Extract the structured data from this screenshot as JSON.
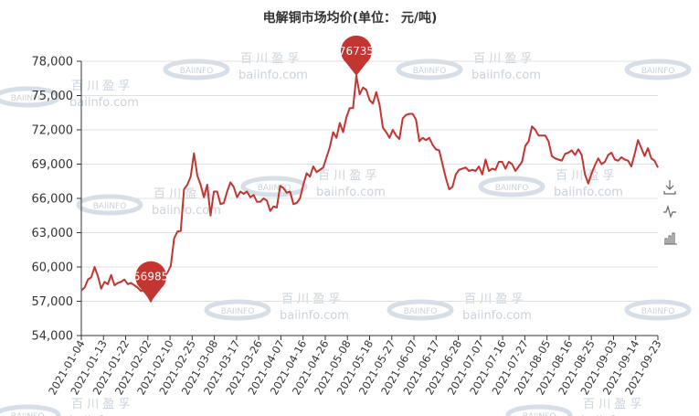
{
  "chart_data": {
    "type": "line",
    "title": "电解铜市场均价(单位： 元/吨)",
    "xlabel": "",
    "ylabel": "",
    "ylim": [
      54000,
      80000
    ],
    "y_ticks": [
      54000,
      57000,
      60000,
      63000,
      66000,
      69000,
      72000,
      75000,
      78000
    ],
    "y_tick_labels": [
      "54,000",
      "57,000",
      "60,000",
      "63,000",
      "66,000",
      "69,000",
      "72,000",
      "75,000",
      "78,000"
    ],
    "x_tick_labels": [
      "2021-01-04",
      "2021-01-13",
      "2021-01-22",
      "2021-02-02",
      "2021-02-10",
      "2021-02-25",
      "2021-03-08",
      "2021-03-17",
      "2021-03-26",
      "2021-04-07",
      "2021-04-16",
      "2021-04-26",
      "2021-05-08",
      "2021-05-18",
      "2021-05-27",
      "2021-06-07",
      "2021-06-17",
      "2021-06-28",
      "2021-07-07",
      "2021-07-16",
      "2021-07-27",
      "2021-08-05",
      "2021-08-16",
      "2021-08-25",
      "2021-09-03",
      "2021-09-14",
      "2021-09-23"
    ],
    "grid": true,
    "line_color": "#c23531",
    "series": [
      {
        "values": [
          57950,
          58200,
          58900,
          59100,
          60000,
          59200,
          58100,
          58700,
          58500,
          59300,
          58400,
          58600,
          58700,
          58900,
          58500,
          58600,
          58400,
          58200,
          57900,
          58000,
          57500,
          56985,
          57800,
          58200,
          58800,
          59200,
          59500,
          60100,
          62500,
          63100,
          63150,
          66800,
          67200,
          67900,
          69950,
          68000,
          67200,
          66100,
          67200,
          64500,
          66600,
          66600,
          65500,
          65600,
          66600,
          67400,
          67000,
          66100,
          66600,
          66400,
          66600,
          66100,
          66300,
          65700,
          65700,
          66000,
          65800,
          64900,
          65300,
          65200,
          67100,
          66900,
          66500,
          66600,
          65500,
          65600,
          66000,
          67200,
          68200,
          67900,
          68800,
          68300,
          68500,
          68700,
          69600,
          70500,
          71800,
          71300,
          72600,
          71800,
          73100,
          73900,
          73900,
          76735,
          75100,
          75700,
          75500,
          74600,
          74300,
          75300,
          74200,
          72200,
          71800,
          71300,
          72000,
          71500,
          71200,
          73000,
          73300,
          73400,
          73400,
          72900,
          71000,
          71300,
          71100,
          71300,
          70700,
          70300,
          70200,
          69000,
          67800,
          66800,
          67000,
          68100,
          68500,
          68600,
          68700,
          68400,
          68500,
          68400,
          68800,
          68100,
          69400,
          68400,
          68600,
          68500,
          69200,
          69200,
          68600,
          69200,
          69000,
          68400,
          68800,
          69200,
          70600,
          71000,
          72300,
          72000,
          71500,
          71500,
          71500,
          71000,
          69700,
          69500,
          69400,
          69300,
          69900,
          70000,
          70200,
          69800,
          70300,
          69800,
          68100,
          67300,
          68200,
          68900,
          69500,
          69000,
          69200,
          69800,
          70000,
          69400,
          69300,
          69600,
          69400,
          69300,
          68800,
          69900,
          71100,
          70400,
          69700,
          70400,
          69500,
          69300,
          68700
        ]
      }
    ],
    "markers": [
      {
        "label": "76735",
        "value": 76735,
        "index": 83
      },
      {
        "label": "56985",
        "value": 56985,
        "index": 21
      }
    ]
  },
  "watermark": {
    "cn": "百 川 盈 孚",
    "en": "baiinfo.com",
    "logo": "BAIINFO"
  },
  "toolbar": {
    "icons": [
      "download-icon",
      "line-chart-icon",
      "bar-chart-icon"
    ]
  }
}
